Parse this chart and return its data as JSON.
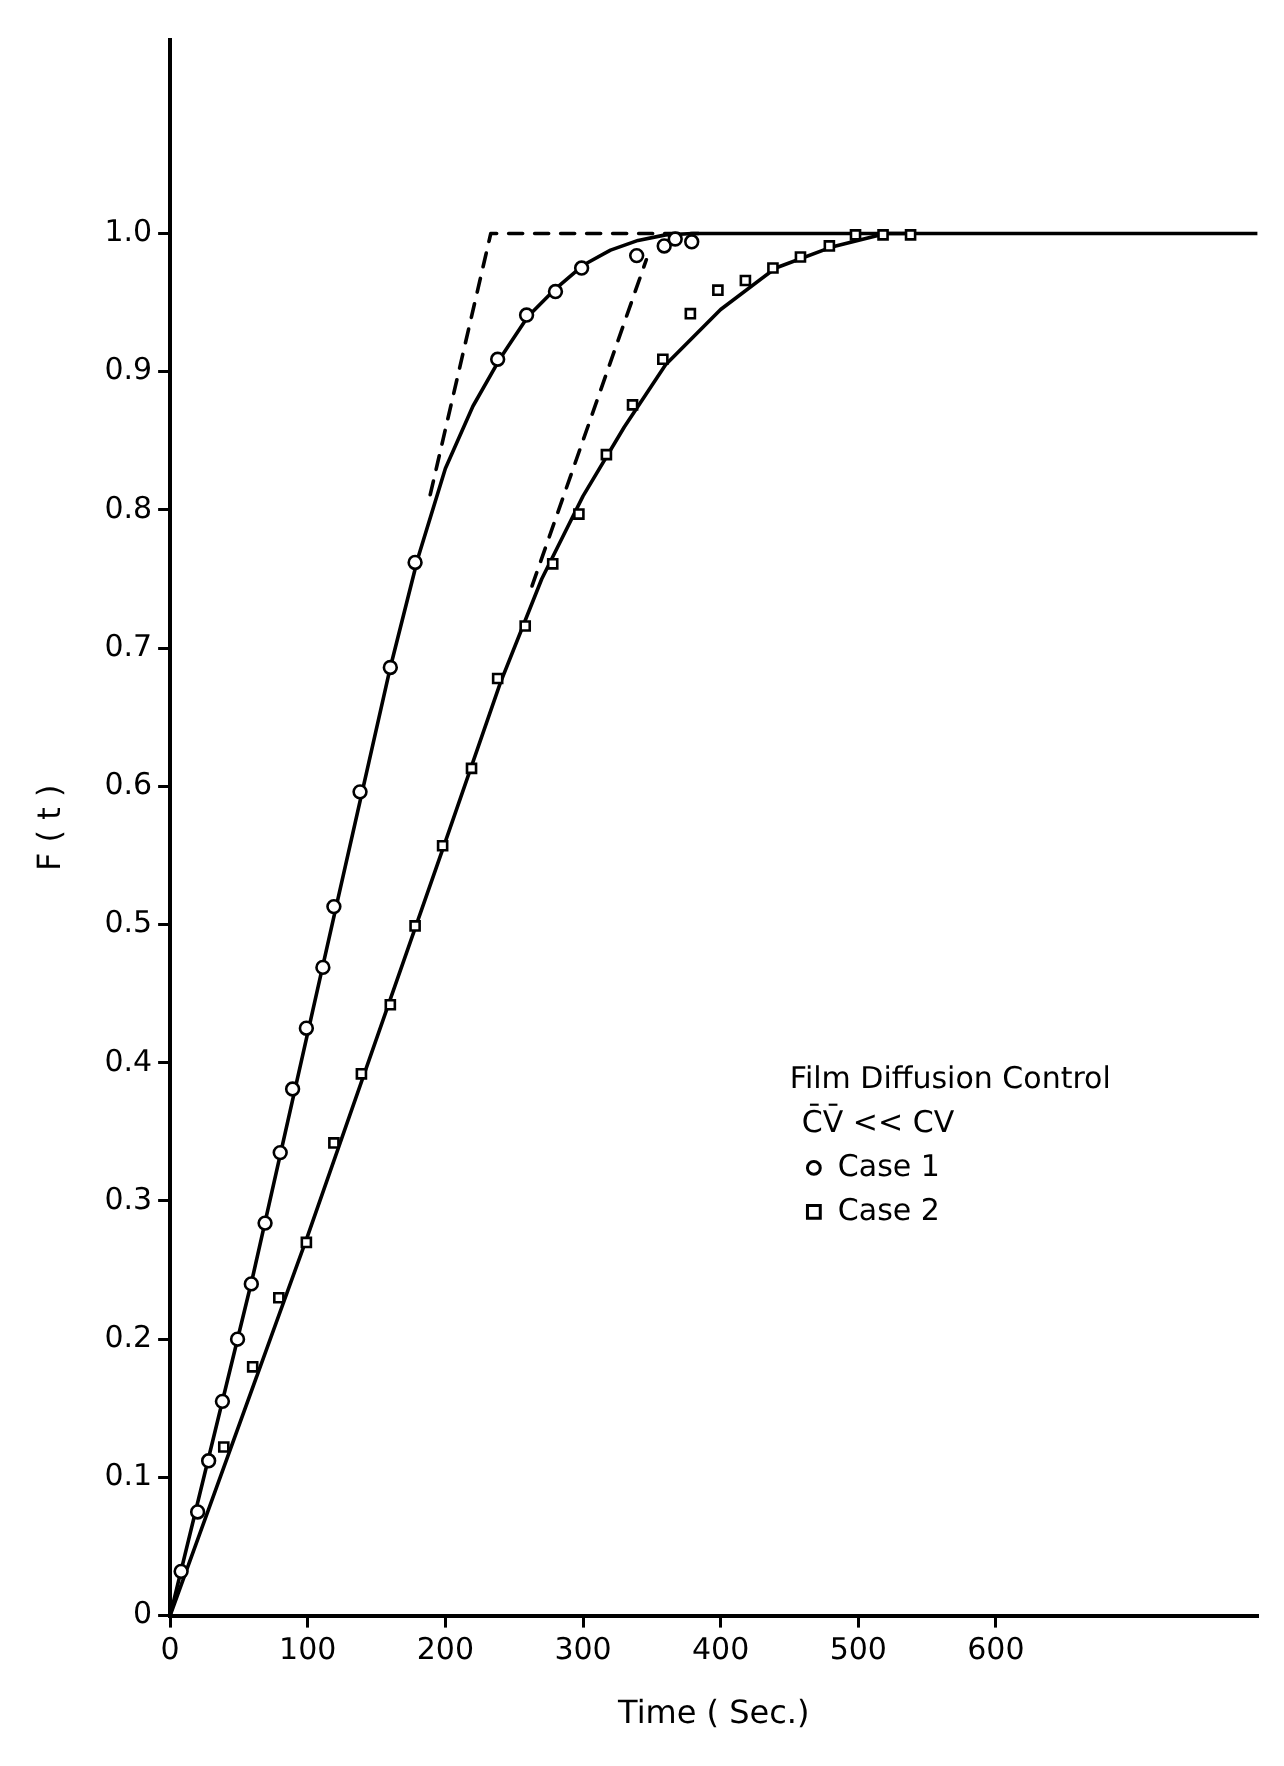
{
  "chart_data": {
    "type": "scatter",
    "xlabel": "Time ( Sec.)",
    "ylabel": "F ( t )",
    "legend_title": "Film Diffusion Control",
    "annotations": [
      "C̄V̄ << CV"
    ],
    "xlim": [
      0,
      790
    ],
    "ylim": [
      0,
      1.14
    ],
    "xticks": [
      0,
      100,
      200,
      300,
      400,
      500,
      600
    ],
    "yticks": [
      0,
      0.1,
      0.2,
      0.3,
      0.4,
      0.5,
      0.6,
      0.7,
      0.8,
      0.9,
      {
        "value": 1,
        "label": "1.0"
      }
    ],
    "grid": false,
    "legend": "bottom right",
    "series": [
      {
        "name": "Case 1",
        "marker": "circle",
        "color": "#000000",
        "x": [
          8,
          20,
          28,
          38,
          49,
          59,
          69,
          80,
          89,
          99,
          111,
          119,
          138,
          160,
          178,
          238,
          259,
          280,
          299,
          339,
          359,
          367,
          379
        ],
        "values": [
          0.032,
          0.075,
          0.112,
          0.155,
          0.2,
          0.24,
          0.284,
          0.335,
          0.381,
          0.425,
          0.469,
          0.513,
          0.596,
          0.686,
          0.762,
          0.909,
          0.941,
          0.958,
          0.975,
          0.984,
          0.991,
          0.996,
          0.994
        ]
      },
      {
        "name": "Case 2",
        "marker": "square",
        "color": "#000000",
        "x": [
          39,
          60,
          79,
          99,
          119,
          139,
          160,
          178,
          198,
          219,
          238,
          258,
          278,
          297,
          317,
          336,
          358,
          378,
          398,
          418,
          438,
          458,
          479,
          498,
          518,
          538
        ],
        "values": [
          0.122,
          0.18,
          0.23,
          0.27,
          0.342,
          0.392,
          0.442,
          0.499,
          0.557,
          0.613,
          0.678,
          0.716,
          0.761,
          0.797,
          0.84,
          0.876,
          0.909,
          0.942,
          0.959,
          0.966,
          0.975,
          0.983,
          0.991,
          0.999,
          0.999,
          0.999
        ]
      },
      {
        "type": "line",
        "marker": "none",
        "line_style": "solid",
        "color": "#000000",
        "x": [
          0,
          60,
          120,
          160,
          180,
          200,
          220,
          240,
          260,
          280,
          300,
          320,
          340,
          360,
          380,
          790
        ],
        "values": [
          0,
          0.245,
          0.51,
          0.686,
          0.765,
          0.83,
          0.875,
          0.91,
          0.94,
          0.96,
          0.977,
          0.988,
          0.995,
          0.999,
          1,
          1
        ]
      },
      {
        "type": "line",
        "marker": "none",
        "line_style": "solid",
        "color": "#000000",
        "x": [
          0,
          100,
          200,
          240,
          270,
          300,
          330,
          360,
          400,
          440,
          480,
          520,
          540
        ],
        "values": [
          0,
          0.275,
          0.56,
          0.675,
          0.75,
          0.81,
          0.86,
          0.905,
          0.945,
          0.975,
          0.99,
          1,
          1
        ]
      },
      {
        "type": "line",
        "marker": "none",
        "line_style": "dashed",
        "color": "#000000",
        "x": [
          189,
          233,
          384
        ],
        "values": [
          0.811,
          1,
          1
        ]
      },
      {
        "type": "line",
        "marker": "none",
        "line_style": "dashed",
        "color": "#000000",
        "x": [
          263,
          346
        ],
        "values": [
          0.745,
          0.981
        ]
      }
    ]
  }
}
